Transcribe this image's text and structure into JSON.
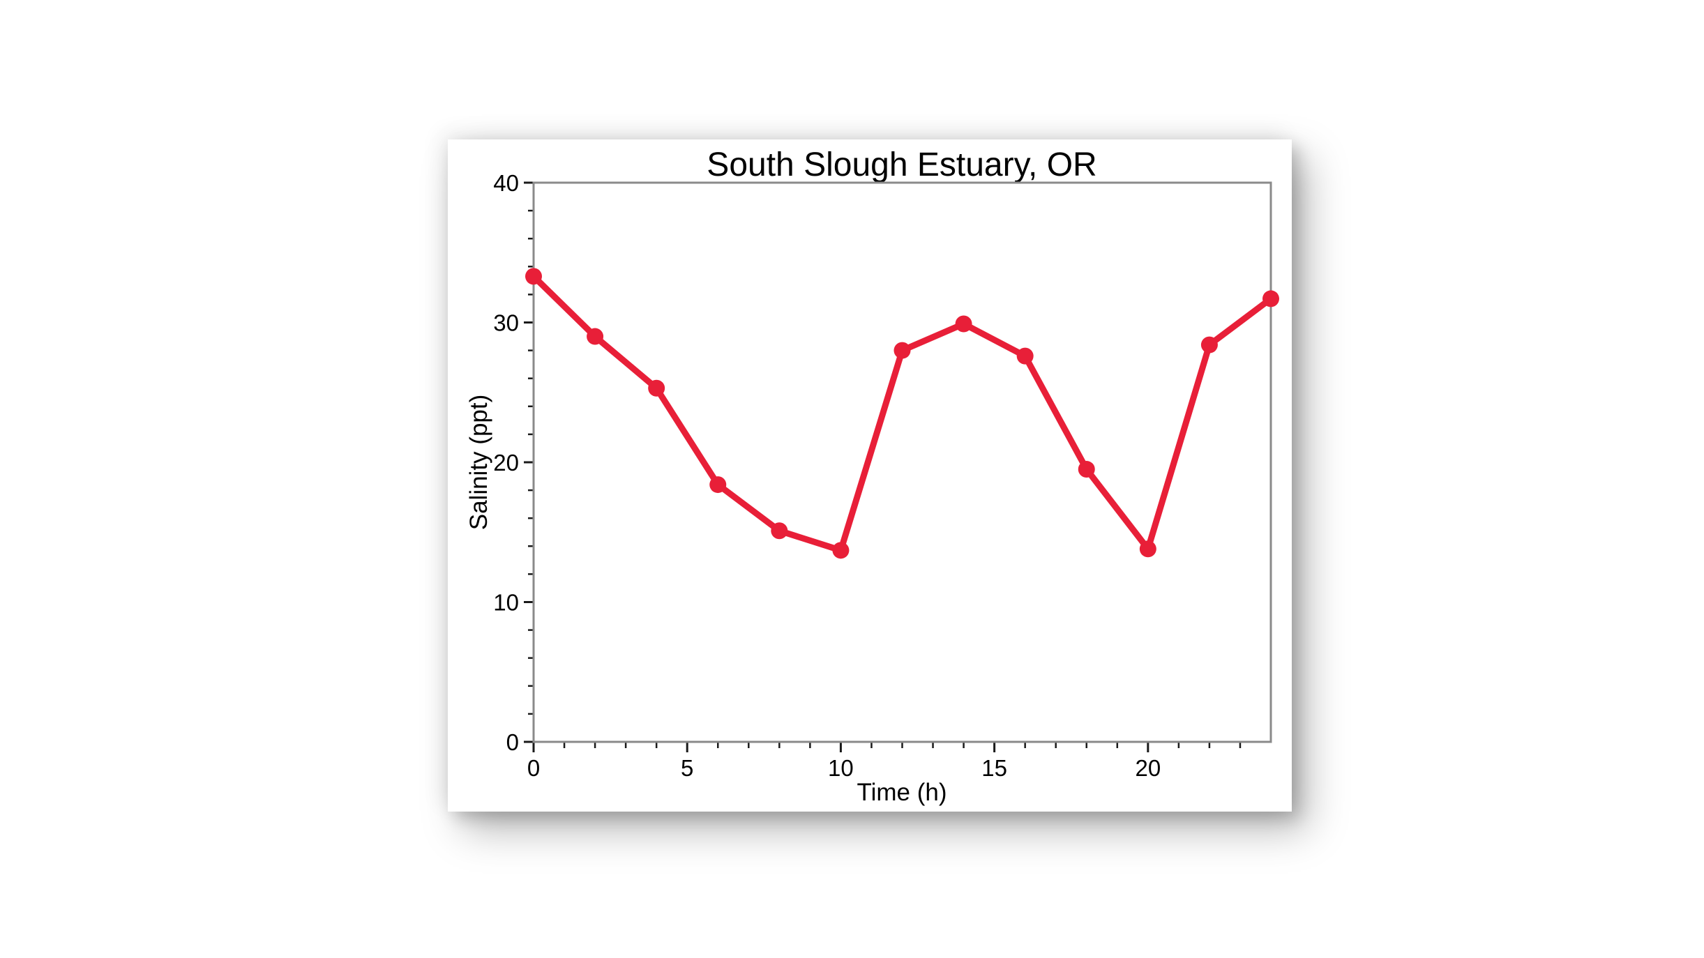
{
  "chart_data": {
    "type": "line",
    "title": "South Slough Estuary, OR",
    "xlabel": "Time (h)",
    "ylabel": "Salinity (ppt)",
    "x": [
      0,
      2,
      4,
      6,
      8,
      10,
      12,
      14,
      16,
      18,
      20,
      22,
      24
    ],
    "y": [
      33.3,
      29.0,
      25.3,
      18.4,
      15.1,
      13.7,
      28.0,
      29.9,
      27.6,
      19.5,
      13.8,
      28.4,
      31.7
    ],
    "xlim": [
      0,
      24
    ],
    "ylim": [
      0,
      40
    ],
    "x_major_ticks": [
      0,
      5,
      10,
      15,
      20
    ],
    "x_major_tick_labels": [
      "0",
      "5",
      "10",
      "15",
      "20"
    ],
    "x_minor_step": 1,
    "y_major_ticks": [
      0,
      10,
      20,
      30,
      40
    ],
    "y_major_tick_labels": [
      "0",
      "10",
      "20",
      "30",
      "40"
    ],
    "y_minor_step": 2,
    "grid": false,
    "legend": "none",
    "marker": "filled-circle"
  },
  "colors": {
    "line": "#e81f38",
    "marker": "#e81f38",
    "plot_border": "#8a8a8a",
    "tick": "#1a1a1a",
    "text": "#000000",
    "card_background": "#ffffff",
    "page_background": "#ffffff"
  }
}
